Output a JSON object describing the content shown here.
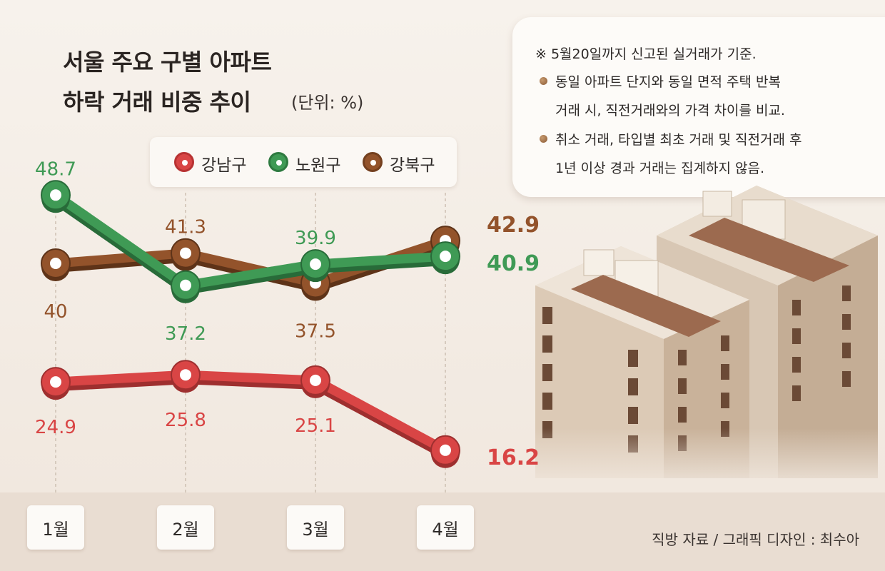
{
  "title_line1": "서울 주요 구별 아파트",
  "title_line2": "하락 거래 비중 추이",
  "unit": "(단위: %)",
  "notes": {
    "line1": "※ 5월20일까지 신고된 실거래가 기준.",
    "line2a": "동일 아파트 단지와 동일 면적 주택 반복",
    "line2b": "거래 시, 직전거래와의 가격 차이를 비교.",
    "line3a": "취소 거래, 타입별 최초 거래 및 직전거래 후",
    "line3b": "1년 이상 경과 거래는 집계하지 않음."
  },
  "credit": "직방 자료 / 그래픽 디자인 : 최수아",
  "chart_data": {
    "type": "line",
    "title": "서울 주요 구별 아파트 하락 거래 비중 추이",
    "unit": "(단위: %)",
    "categories": [
      "1월",
      "2월",
      "3월",
      "4월"
    ],
    "legend_position": "top",
    "grid": false,
    "series": [
      {
        "name": "강남구",
        "color": "#d94545",
        "values": [
          24.9,
          25.8,
          25.1,
          16.2
        ],
        "labels": [
          "24.9",
          "25.8",
          "25.1",
          "16.2"
        ]
      },
      {
        "name": "노원구",
        "color": "#3f9a55",
        "values": [
          48.7,
          37.2,
          39.9,
          40.9
        ],
        "labels": [
          "48.7",
          "37.2",
          "39.9",
          "40.9"
        ]
      },
      {
        "name": "강북구",
        "color": "#93532b",
        "values": [
          40,
          41.3,
          37.5,
          42.9
        ],
        "labels": [
          "40",
          "41.3",
          "37.5",
          "42.9"
        ]
      }
    ]
  }
}
